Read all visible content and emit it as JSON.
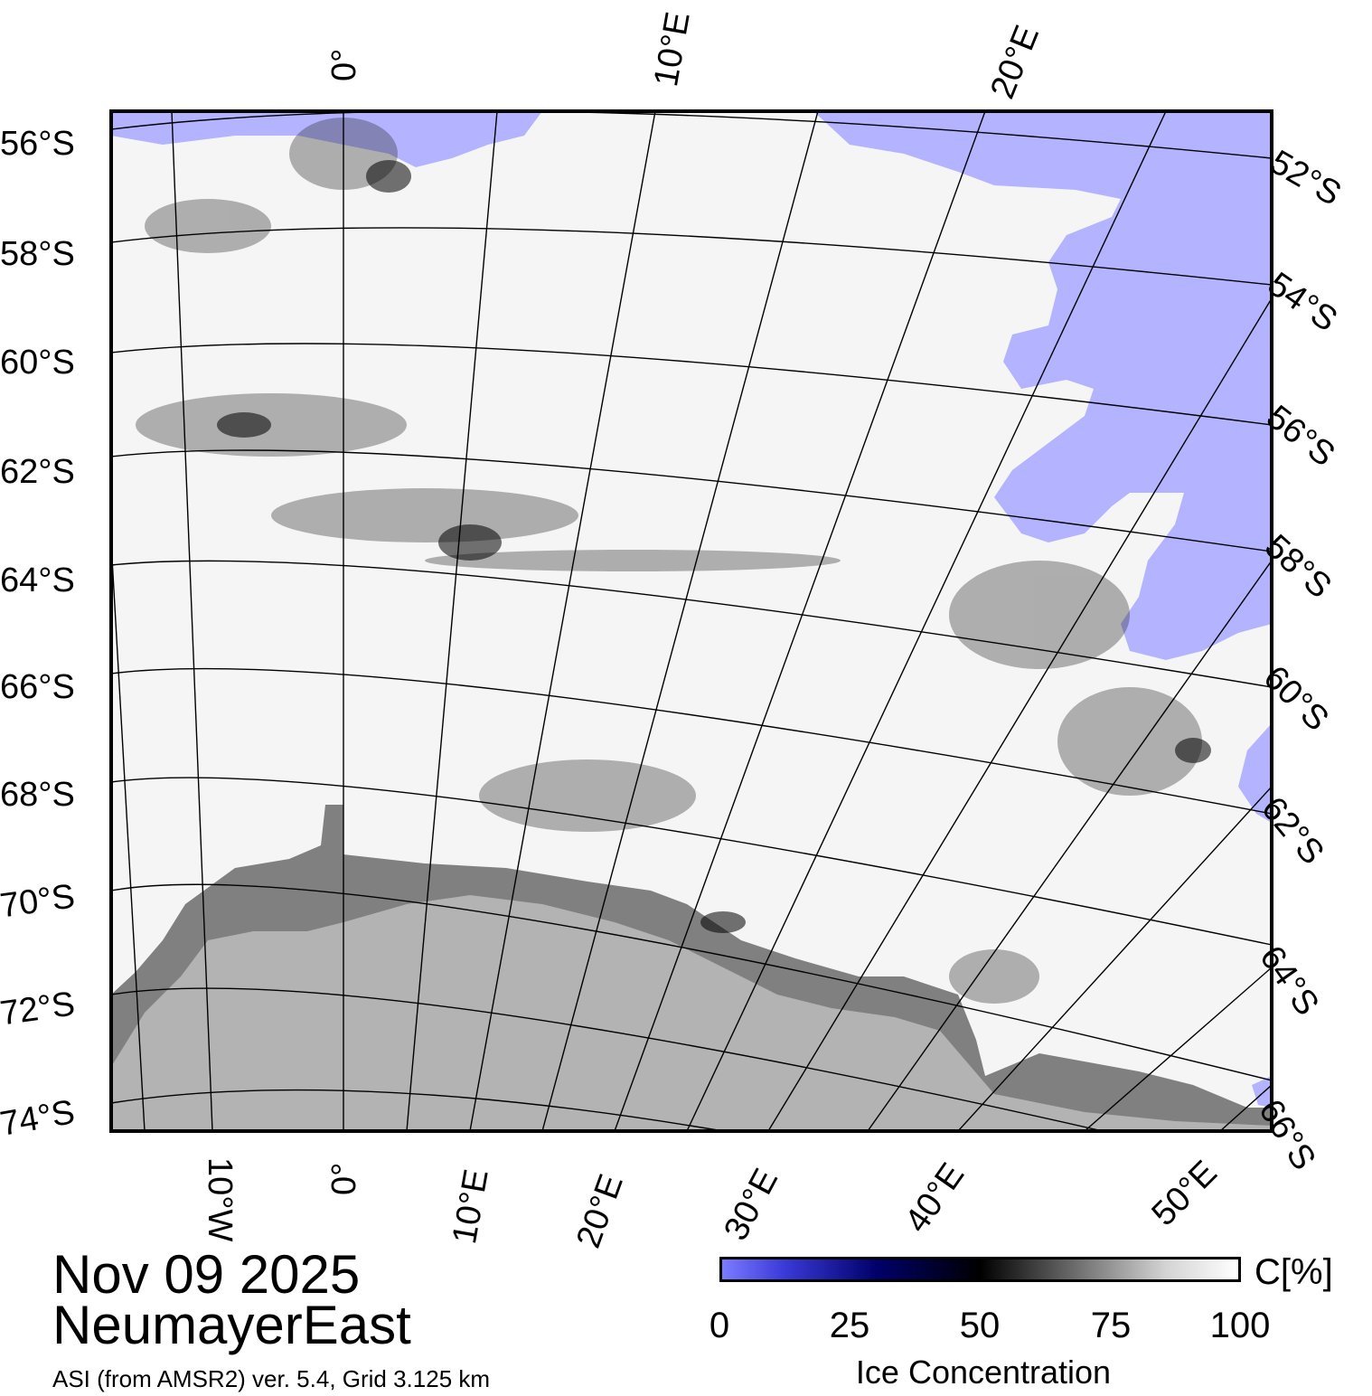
{
  "date_label": "Nov 09 2025",
  "region_label": "NeumayerEast",
  "source_label": "ASI (from AMSR2) ver. 5.4,  Grid 3.125 km",
  "colorbar": {
    "unit": "C[%]",
    "title": "Ice Concentration",
    "ticks": [
      "0",
      "25",
      "50",
      "75",
      "100"
    ],
    "colors": [
      "#7b7bff",
      "#00006a",
      "#000000",
      "#808080",
      "#ffffff"
    ]
  },
  "left_lat_labels": [
    "56°S",
    "58°S",
    "60°S",
    "62°S",
    "64°S",
    "66°S",
    "68°S",
    "70°S",
    "72°S",
    "74°S"
  ],
  "right_lat_labels": [
    "52°S",
    "54°S",
    "56°S",
    "58°S",
    "60°S",
    "62°S",
    "64°S",
    "66°S"
  ],
  "top_lon_labels": [
    "0°",
    "10°E",
    "20°E"
  ],
  "bottom_lon_labels": [
    "10°W",
    "0°",
    "10°E",
    "20°E",
    "30°E",
    "40°E",
    "50°E"
  ],
  "legend_colors": {
    "open_water": "#b3b3ff",
    "ice_shelf": "#808080",
    "land": "#b3b3b3",
    "ice_full": "#ffffff"
  }
}
